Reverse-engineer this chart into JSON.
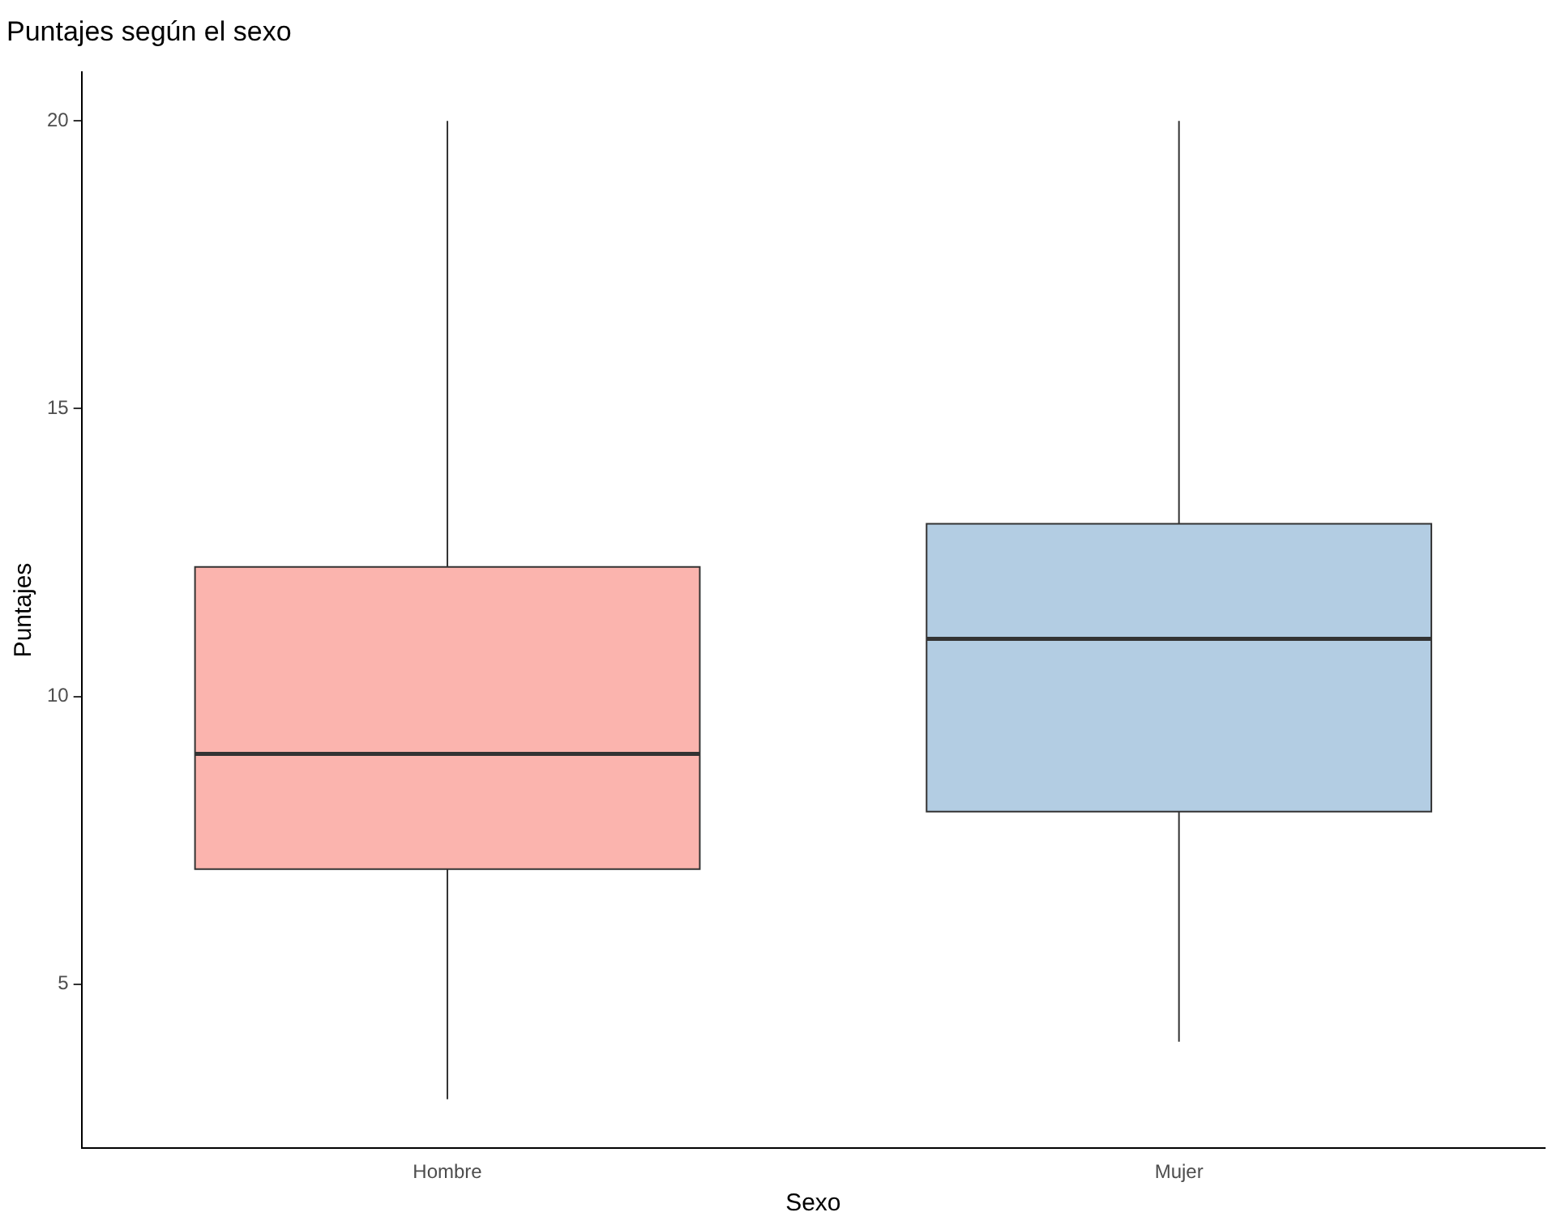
{
  "chart_data": {
    "type": "box",
    "title": "Puntajes según el sexo",
    "xlabel": "Sexo",
    "ylabel": "Puntajes",
    "categories": [
      "Hombre",
      "Mujer"
    ],
    "colors": [
      "#fbb4ae",
      "#b3cde3"
    ],
    "boxes": [
      {
        "low": 3,
        "q1": 7,
        "median": 9,
        "q3": 12.25,
        "high": 20
      },
      {
        "low": 4,
        "q1": 8,
        "median": 11,
        "q3": 13,
        "high": 20
      }
    ],
    "ylim": [
      2.15,
      20.85
    ],
    "yticks": [
      5,
      10,
      15,
      20
    ],
    "grid": false,
    "legend": false
  }
}
